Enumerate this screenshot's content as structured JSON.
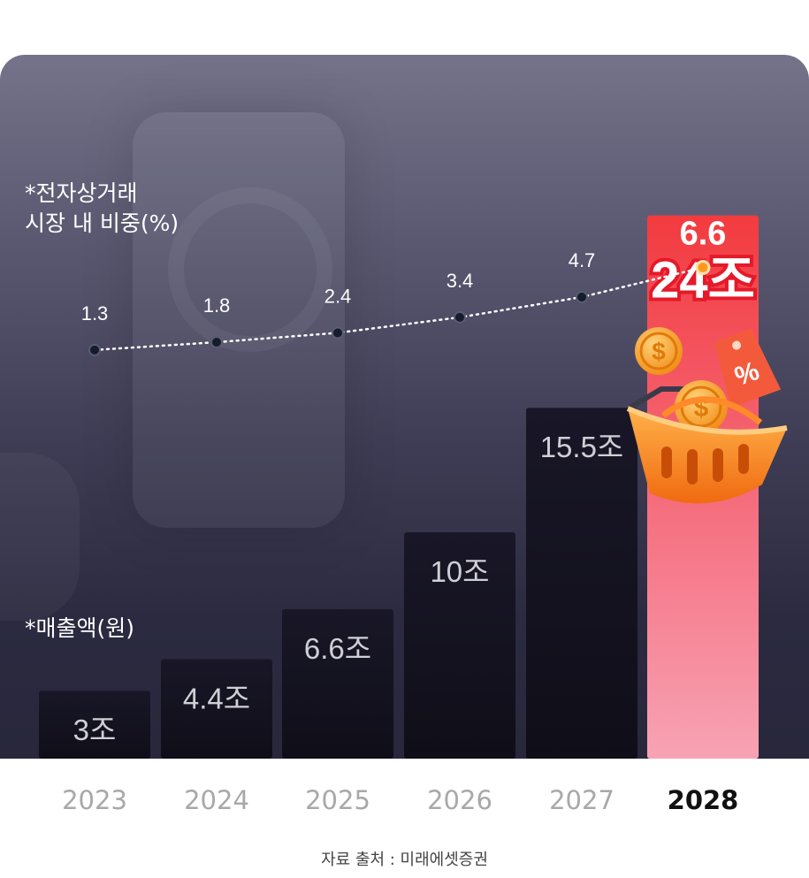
{
  "chart_data": {
    "type": "bar+line",
    "categories": [
      "2023",
      "2024",
      "2025",
      "2026",
      "2027",
      "2028"
    ],
    "highlight_category": "2028",
    "series": [
      {
        "name": "*매출액(원)",
        "kind": "bar",
        "values": [
          3,
          4.4,
          6.6,
          10,
          15.5,
          24
        ],
        "value_labels": [
          "3조",
          "4.4조",
          "6.6조",
          "10조",
          "15.5조",
          "24조"
        ],
        "unit": "조"
      },
      {
        "name": "*전자상거래\n시장 내 비중(%)",
        "kind": "line",
        "values": [
          1.3,
          1.8,
          2.4,
          3.4,
          4.7,
          6.6
        ],
        "value_labels": [
          "1.3",
          "1.8",
          "2.4",
          "3.4",
          "4.7",
          "6.6"
        ],
        "unit": "%"
      }
    ],
    "source": "자료 출처 : 미래에셋증권"
  },
  "labels": {
    "share_line1": "*전자상거래",
    "share_line2": "시장 내 비중(%)",
    "sales": "*매출액(원)"
  },
  "colors": {
    "bar": "#15131f",
    "bar_highlight_top": "#f23b3f",
    "bar_highlight_bottom": "#f7a3b4",
    "line": "#ffffff",
    "point": "#161c2b",
    "point_highlight": "#ff9a1f",
    "bar_label": "#cfcfd6",
    "year": "#a8a8a8",
    "year_highlight": "#111111"
  },
  "decorations": [
    "coin-icon",
    "discount-tag-icon",
    "shopping-basket-icon"
  ]
}
